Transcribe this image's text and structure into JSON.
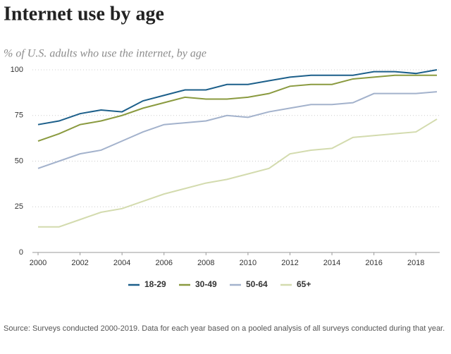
{
  "chart_data": {
    "type": "line",
    "title": "Internet use by age",
    "subtitle": "% of U.S. adults who use the internet, by age",
    "x": [
      2000,
      2001,
      2002,
      2003,
      2004,
      2005,
      2006,
      2007,
      2008,
      2009,
      2010,
      2011,
      2012,
      2013,
      2014,
      2015,
      2016,
      2017,
      2018,
      2019
    ],
    "series": [
      {
        "name": "18-29",
        "color": "#1c5f8a",
        "values": [
          70,
          72,
          76,
          78,
          77,
          83,
          86,
          89,
          89,
          92,
          92,
          94,
          96,
          97,
          97,
          97,
          99,
          99,
          98,
          100
        ]
      },
      {
        "name": "30-49",
        "color": "#8a9a3f",
        "values": [
          61,
          65,
          70,
          72,
          75,
          79,
          82,
          85,
          84,
          84,
          85,
          87,
          91,
          92,
          92,
          95,
          96,
          97,
          97,
          97
        ]
      },
      {
        "name": "50-64",
        "color": "#a3b2cc",
        "values": [
          46,
          50,
          54,
          56,
          61,
          66,
          70,
          71,
          72,
          75,
          74,
          77,
          79,
          81,
          81,
          82,
          87,
          87,
          87,
          88
        ]
      },
      {
        "name": "65+",
        "color": "#d3dbae",
        "values": [
          14,
          14,
          18,
          22,
          24,
          28,
          32,
          35,
          38,
          40,
          43,
          46,
          54,
          56,
          57,
          63,
          64,
          65,
          66,
          73
        ]
      }
    ],
    "xlim": [
      2000,
      2019
    ],
    "xticks": [
      2000,
      2002,
      2004,
      2006,
      2008,
      2010,
      2012,
      2014,
      2016,
      2018
    ],
    "ylim": [
      0,
      100
    ],
    "yticks": [
      0,
      25,
      50,
      75,
      100
    ],
    "grid": true,
    "source": "Source: Surveys conducted 2000-2019. Data for each year based on a pooled analysis of all surveys conducted during that year."
  }
}
